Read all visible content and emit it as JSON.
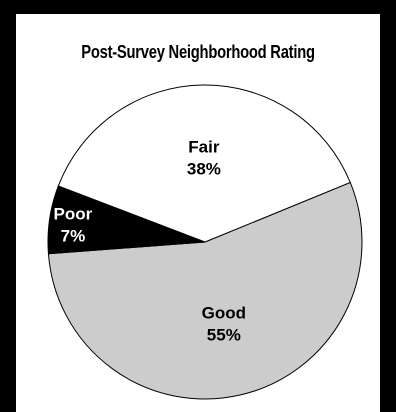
{
  "chart_data": {
    "type": "pie",
    "title": "Post-Survey Neighborhood Rating",
    "categories": [
      "Good",
      "Poor",
      "Fair"
    ],
    "values": [
      55,
      7,
      38
    ],
    "value_labels": [
      "55%",
      "7%",
      "38%"
    ],
    "colors": [
      "#cccccc",
      "#000000",
      "#ffffff"
    ],
    "label_colors": [
      "#000000",
      "#ffffff",
      "#000000"
    ],
    "legend": "none"
  }
}
